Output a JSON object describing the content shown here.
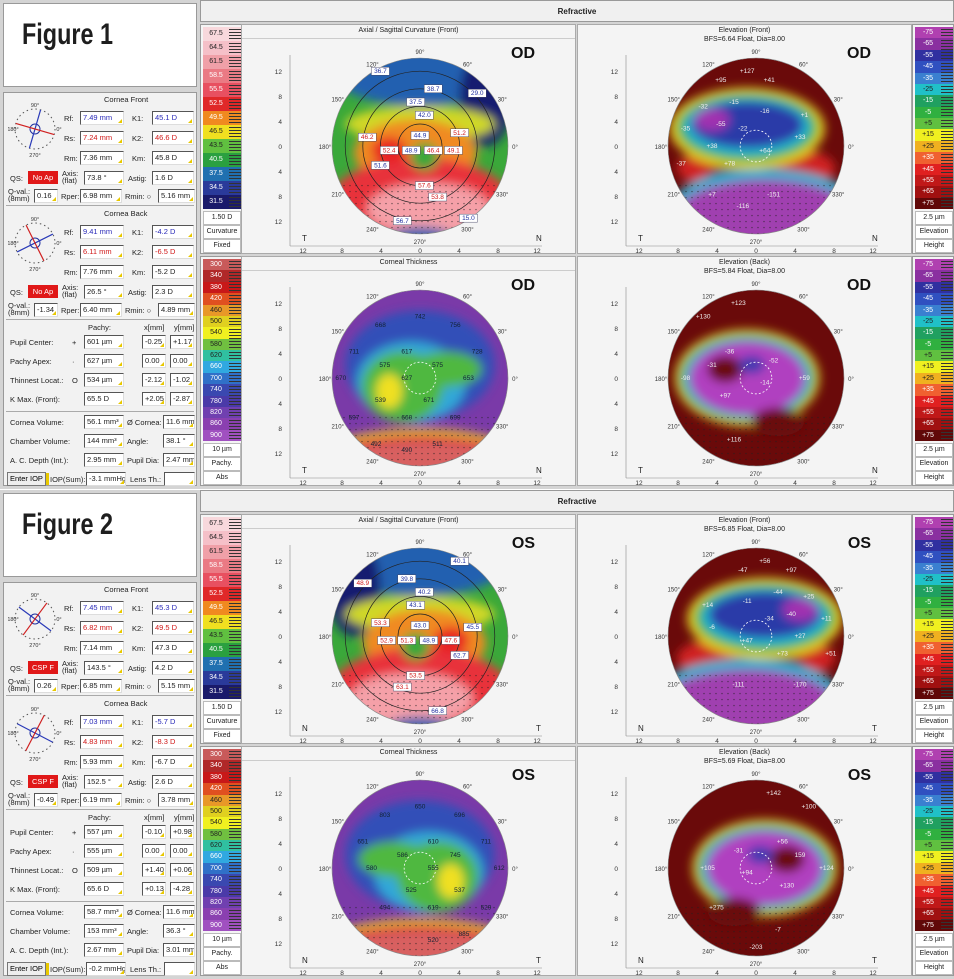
{
  "figures": [
    {
      "label": "Figure 1",
      "header": "Refractive",
      "eye": "OD",
      "front": {
        "title": "Cornea Front",
        "rf": "7.49 mm",
        "k1": "45.1 D",
        "rs": "7.24 mm",
        "k2": "46.6 D",
        "rm": "7.36 mm",
        "km": "45.8 D",
        "qs": "No Ap",
        "axis": "73.8 °",
        "astig": "1.6 D",
        "qval": "0.16",
        "rper": "6.98 mm",
        "rmin": "5.16 mm"
      },
      "back": {
        "title": "Cornea Back",
        "rf": "9.41 mm",
        "k1": "-4.2 D",
        "rs": "6.11 mm",
        "k2": "-6.5 D",
        "rm": "7.76 mm",
        "km": "-5.2 D",
        "qs": "No Ap",
        "axis": "26.5 °",
        "astig": "2.3 D",
        "qval": "-1.34",
        "rper": "6.40 mm",
        "rmin": "4.89 mm"
      },
      "pachy": [
        {
          "label": "Pupil Center:",
          "sym": "+",
          "val": "601 µm",
          "x": "-0.25",
          "y": "+1.17"
        },
        {
          "label": "Pachy Apex:",
          "sym": "·",
          "val": "627 µm",
          "x": "0.00",
          "y": "0.00"
        },
        {
          "label": "Thinnest Locat.:",
          "sym": "O",
          "val": "534 µm",
          "x": "-2.12",
          "y": "-1.02"
        },
        {
          "label": "K Max. (Front):",
          "sym": "",
          "val": "65.5 D",
          "x": "+2.05",
          "y": "-2.87"
        }
      ],
      "volume": {
        "cornea_volume": "56.1 mm³",
        "cornea_dia": "11.6 mm",
        "chamber_volume": "144 mm³",
        "angle": "38.1 °",
        "ac_depth": "2.95 mm",
        "pupil_dia": "2.47 mm",
        "iop": "-3.1 mmHg",
        "lens_th": ""
      },
      "maps": [
        {
          "title": "Axial / Sagittal Curvature (Front)",
          "subtitle": "",
          "eye": "OD",
          "labels": [
            "36.7",
            "38.7",
            "37.5",
            "42.0",
            "29.0",
            "46.2",
            "44.9",
            "51.2",
            "52.4",
            "48.9",
            "46.4",
            "49.1",
            "51.6",
            "57.6",
            "53.8",
            "56.7",
            "15.0"
          ]
        },
        {
          "title": "Elevation (Front)",
          "subtitle": "BFS=6.64 Float, Dia=8.00",
          "eye": "OD",
          "labels": [
            "+127",
            "+95",
            "+41",
            "-32",
            "-15",
            "-55",
            "-16",
            "-22",
            "+1",
            "-35",
            "+33",
            "+38",
            "+64",
            "-37",
            "+78",
            "+7",
            "-151",
            "-116"
          ]
        },
        {
          "title": "Corneal Thickness",
          "subtitle": "",
          "eye": "OD",
          "labels": [
            "742",
            "668",
            "756",
            "711",
            "617",
            "575",
            "575",
            "728",
            "670",
            "627",
            "653",
            "539",
            "671",
            "597",
            "660",
            "699",
            "492",
            "490",
            "511"
          ]
        },
        {
          "title": "Elevation (Back)",
          "subtitle": "BFS=5.84 Float, Dia=8.00",
          "eye": "OD",
          "labels": [
            "+123",
            "+130",
            "-36",
            "-31",
            "-52",
            "-98",
            "+97",
            "-14",
            "+59",
            "+116"
          ]
        }
      ],
      "axis_left": "T",
      "axis_right": "N"
    },
    {
      "label": "Figure 2",
      "header": "Refractive",
      "eye": "OS",
      "front": {
        "title": "Cornea Front",
        "rf": "7.45 mm",
        "k1": "45.3 D",
        "rs": "6.82 mm",
        "k2": "49.5 D",
        "rm": "7.14 mm",
        "km": "47.3 D",
        "qs": "CSP F",
        "axis": "143.5 °",
        "astig": "4.2 D",
        "qval": "0.26",
        "rper": "6.85 mm",
        "rmin": "5.15 mm"
      },
      "back": {
        "title": "Cornea Back",
        "rf": "7.03 mm",
        "k1": "-5.7 D",
        "rs": "4.83 mm",
        "k2": "-8.3 D",
        "rm": "5.93 mm",
        "km": "-6.7 D",
        "qs": "CSP F",
        "axis": "152.5 °",
        "astig": "2.6 D",
        "qval": "-0.49",
        "rper": "6.19 mm",
        "rmin": "3.78 mm"
      },
      "pachy": [
        {
          "label": "Pupil Center:",
          "sym": "+",
          "val": "557 µm",
          "x": "-0.10",
          "y": "+0.98"
        },
        {
          "label": "Pachy Apex:",
          "sym": "·",
          "val": "555 µm",
          "x": "0.00",
          "y": "0.00"
        },
        {
          "label": "Thinnest Locat.:",
          "sym": "O",
          "val": "509 µm",
          "x": "+1.40",
          "y": "+0.06"
        },
        {
          "label": "K Max. (Front):",
          "sym": "",
          "val": "65.6 D",
          "x": "+0.13",
          "y": "-4.28"
        }
      ],
      "volume": {
        "cornea_volume": "58.7 mm³",
        "cornea_dia": "11.6 mm",
        "chamber_volume": "153 mm³",
        "angle": "36.3 °",
        "ac_depth": "2.67 mm",
        "pupil_dia": "3.01 mm",
        "iop": "-0.2 mmHg",
        "lens_th": ""
      },
      "maps": [
        {
          "title": "Axial / Sagittal Curvature (Front)",
          "subtitle": "",
          "eye": "OS",
          "labels": [
            "40.1",
            "39.8",
            "40.2",
            "43.1",
            "48.9",
            "45.5",
            "43.0",
            "53.3",
            "47.6",
            "48.9",
            "51.3",
            "52.9",
            "62.7",
            "53.5",
            "63.1",
            "66.8"
          ]
        },
        {
          "title": "Elevation (Front)",
          "subtitle": "BFS=6.85 Float, Dia=8.00",
          "eye": "OS",
          "labels": [
            "+56",
            "+97",
            "-47",
            "+25",
            "-44",
            "-40",
            "-11",
            "-34",
            "+14",
            "+11",
            "-6",
            "+27",
            "+47",
            "+51",
            "+73",
            "-170",
            "-111"
          ]
        },
        {
          "title": "Corneal Thickness",
          "subtitle": "",
          "eye": "OS",
          "labels": [
            "650",
            "696",
            "803",
            "711",
            "610",
            "745",
            "586",
            "651",
            "612",
            "555",
            "580",
            "537",
            "525",
            "529",
            "619",
            "494",
            "885",
            "520"
          ]
        },
        {
          "title": "Elevation (Back)",
          "subtitle": "BFS=5.69 Float, Dia=8.00",
          "eye": "OS",
          "labels": [
            "+142",
            "+100",
            "+56",
            "159",
            "-31",
            "+124",
            "+130",
            "+94",
            "+105",
            "-7",
            "+275",
            "-203"
          ]
        }
      ],
      "axis_left": "N",
      "axis_right": "T"
    }
  ],
  "common": {
    "labels": {
      "rf": "Rf:",
      "rs": "Rs:",
      "rm": "Rm:",
      "k1": "K1:",
      "k2": "K2:",
      "km": "Km:",
      "qs": "QS:",
      "axis": "Axis: (flat)",
      "astig": "Astig:",
      "qval": "Q-val.: (8mm)",
      "rper": "Rper:",
      "rmin": "Rmin: ○",
      "pachy": "Pachy:",
      "x": "x[mm]",
      "y": "y[mm]",
      "cornea_volume": "Cornea Volume:",
      "cornea_dia": "Ø Cornea:",
      "chamber_volume": "Chamber Volume:",
      "angle": "Angle:",
      "ac_depth": "A. C. Depth (Int.):",
      "pupil_dia": "Pupil Dia:",
      "enter_iop": "Enter IOP",
      "iop": "IOP(Sum):",
      "lens_th": "Lens Th.:"
    },
    "compass": {
      "top": "90°",
      "bottom": "270°",
      "left": "180°",
      "right": "0°"
    },
    "degree_labels": [
      "90°",
      "120°",
      "60°",
      "150°",
      "30°",
      "180°",
      "0°",
      "210°",
      "330°",
      "240°",
      "300°",
      "270°"
    ],
    "tick_labels": [
      "12",
      "8",
      "4",
      "0",
      "4",
      "8",
      "12"
    ],
    "scales": {
      "curvature": {
        "values": [
          "67.5",
          "64.5",
          "61.5",
          "58.5",
          "55.5",
          "52.5",
          "49.5",
          "46.5",
          "43.5",
          "40.5",
          "37.5",
          "34.5",
          "31.5"
        ],
        "colors": [
          "#f8d8dc",
          "#f5c0c8",
          "#f0a0a8",
          "#ea7a84",
          "#e85060",
          "#e02828",
          "#f08a20",
          "#f0e020",
          "#60c040",
          "#2aa040",
          "#2070b0",
          "#2a3a9a",
          "#1a1a6a"
        ],
        "footer": [
          "1.50 D",
          "Curvature",
          "Fixed"
        ]
      },
      "pachy": {
        "values": [
          "300",
          "340",
          "380",
          "420",
          "460",
          "500",
          "540",
          "580",
          "620",
          "660",
          "700",
          "740",
          "780",
          "820",
          "860",
          "900"
        ],
        "colors": [
          "#c85a5a",
          "#b02828",
          "#c81818",
          "#e05020",
          "#e89828",
          "#e0d020",
          "#f0f020",
          "#70c040",
          "#30c0a0",
          "#30a8e0",
          "#3070c8",
          "#3a48b0",
          "#4a3aa8",
          "#7040b0",
          "#8a40b0",
          "#a050c0"
        ],
        "footer": [
          "10 µm",
          "Pachy.",
          "Abs"
        ]
      },
      "elevation": {
        "values": [
          "-75",
          "-65",
          "-55",
          "-45",
          "-35",
          "-25",
          "-15",
          "-5",
          "+5",
          "+15",
          "+25",
          "+35",
          "+45",
          "+55",
          "+65",
          "+75"
        ],
        "colors": [
          "#b040b0",
          "#8a30a0",
          "#3030a0",
          "#3050c0",
          "#3a80d0",
          "#20c0c8",
          "#20a060",
          "#30b040",
          "#60c040",
          "#f0f020",
          "#f0b020",
          "#f06030",
          "#e02020",
          "#c01818",
          "#a01010",
          "#600808"
        ],
        "footer": [
          "2.5 µm",
          "Elevation",
          "Height"
        ]
      }
    }
  }
}
